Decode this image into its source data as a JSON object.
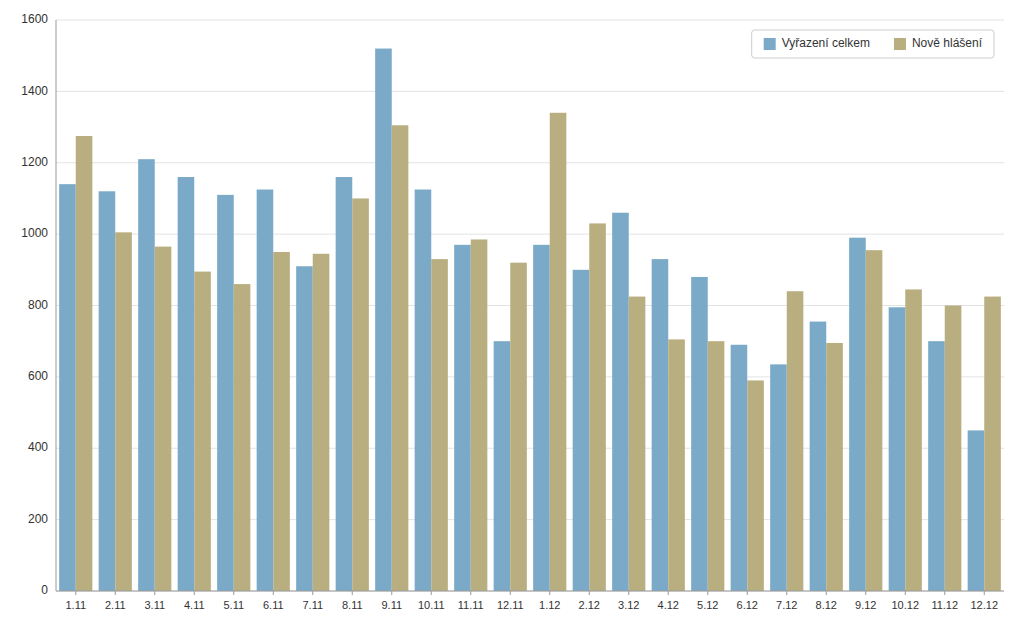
{
  "chart_data": {
    "type": "bar",
    "categories": [
      "1.11",
      "2.11",
      "3.11",
      "4.11",
      "5.11",
      "6.11",
      "7.11",
      "8.11",
      "9.11",
      "10.11",
      "11.11",
      "12.11",
      "1.12",
      "2.12",
      "3.12",
      "4.12",
      "5.12",
      "6.12",
      "7.12",
      "8.12",
      "9.12",
      "10.12",
      "11.12",
      "12.12"
    ],
    "series": [
      {
        "name": "Vyřazení celkem",
        "color": "#7aaac8",
        "values": [
          1140,
          1120,
          1210,
          1160,
          1110,
          1125,
          910,
          1160,
          1520,
          1125,
          970,
          700,
          970,
          900,
          1060,
          930,
          880,
          690,
          635,
          755,
          990,
          795,
          700,
          450
        ]
      },
      {
        "name": "Nově hlášení",
        "color": "#b8ae80",
        "values": [
          1275,
          1005,
          965,
          895,
          860,
          950,
          945,
          1100,
          1305,
          930,
          985,
          920,
          1340,
          1030,
          825,
          705,
          700,
          590,
          840,
          695,
          955,
          845,
          800,
          825
        ]
      }
    ],
    "ylim": [
      0,
      1600
    ],
    "yticks": [
      0,
      200,
      400,
      600,
      800,
      1000,
      1200,
      1400,
      1600
    ],
    "grid": true,
    "legend": "upper right"
  }
}
